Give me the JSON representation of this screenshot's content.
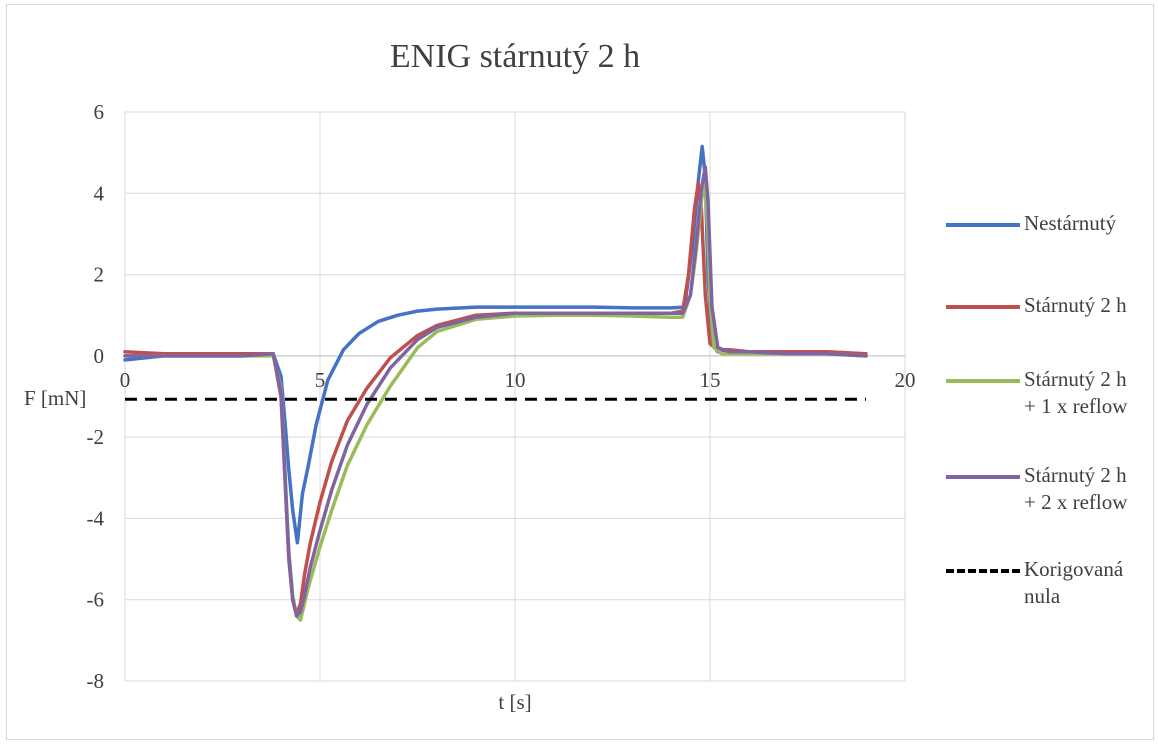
{
  "chart_data": {
    "type": "line",
    "title": "ENIG stárnutý 2 h",
    "xlabel": "t [s]",
    "ylabel": "F [mN]",
    "xlim": [
      0,
      20
    ],
    "ylim": [
      -8,
      6
    ],
    "xticks": [
      0,
      5,
      10,
      15,
      20
    ],
    "yticks": [
      6,
      4,
      2,
      0,
      -2,
      -4,
      -6,
      -8
    ],
    "grid": true,
    "legend_position": "right",
    "series": [
      {
        "name": "Nestárnutý",
        "color": "#4472c4",
        "x": [
          0,
          1,
          2,
          3,
          3.8,
          4.0,
          4.1,
          4.2,
          4.3,
          4.42,
          4.55,
          4.7,
          4.9,
          5.2,
          5.6,
          6.0,
          6.5,
          7.0,
          7.5,
          8.0,
          9.0,
          10.0,
          11.0,
          12.0,
          13.0,
          14.0,
          14.35,
          14.55,
          14.7,
          14.8,
          14.88,
          14.95,
          15.05,
          15.2,
          15.5,
          16,
          17,
          18,
          19
        ],
        "y": [
          -0.1,
          0.0,
          0.0,
          0.0,
          0.05,
          -0.5,
          -1.6,
          -2.8,
          -3.8,
          -4.6,
          -3.4,
          -2.7,
          -1.7,
          -0.6,
          0.15,
          0.55,
          0.85,
          1.0,
          1.1,
          1.15,
          1.2,
          1.2,
          1.2,
          1.2,
          1.18,
          1.18,
          1.2,
          2.7,
          4.3,
          5.15,
          4.4,
          2.0,
          0.3,
          0.1,
          0.05,
          0.05,
          0.05,
          0.05,
          0.0
        ]
      },
      {
        "name": "Stárnutý 2 h",
        "color": "#c0504d",
        "x": [
          0,
          1,
          2,
          3,
          3.8,
          4.0,
          4.1,
          4.2,
          4.3,
          4.4,
          4.5,
          4.6,
          4.75,
          5.0,
          5.3,
          5.7,
          6.2,
          6.8,
          7.5,
          8.0,
          9.0,
          10.0,
          11.0,
          12.0,
          13.0,
          14.0,
          14.3,
          14.45,
          14.6,
          14.7,
          14.78,
          14.88,
          15.0,
          15.2,
          15.5,
          16,
          17,
          18,
          19
        ],
        "y": [
          0.1,
          0.05,
          0.05,
          0.05,
          0.05,
          -1.0,
          -3.0,
          -5.0,
          -6.0,
          -6.35,
          -6.1,
          -5.4,
          -4.6,
          -3.6,
          -2.6,
          -1.6,
          -0.8,
          -0.05,
          0.5,
          0.75,
          1.0,
          1.05,
          1.05,
          1.05,
          1.05,
          1.05,
          1.1,
          2.0,
          3.6,
          4.25,
          3.6,
          1.5,
          0.3,
          0.15,
          0.15,
          0.1,
          0.1,
          0.1,
          0.05
        ]
      },
      {
        "name": "Stárnutý 2 h\n+ 1 x reflow",
        "color": "#9bbb59",
        "x": [
          0,
          1,
          2,
          3,
          3.8,
          4.0,
          4.1,
          4.2,
          4.3,
          4.4,
          4.5,
          4.6,
          4.7,
          4.85,
          5.0,
          5.3,
          5.7,
          6.2,
          6.8,
          7.5,
          8.0,
          9.0,
          10.0,
          11.0,
          12.0,
          13.0,
          14.0,
          14.3,
          14.5,
          14.65,
          14.78,
          14.87,
          14.95,
          15.0,
          15.1,
          15.3,
          16,
          17,
          18,
          19
        ],
        "y": [
          0.0,
          0.0,
          0.0,
          0.0,
          0.0,
          -0.8,
          -2.8,
          -4.8,
          -5.9,
          -6.4,
          -6.5,
          -6.1,
          -5.7,
          -5.2,
          -4.7,
          -3.8,
          -2.7,
          -1.7,
          -0.75,
          0.2,
          0.6,
          0.9,
          0.98,
          1.0,
          1.0,
          0.98,
          0.95,
          0.95,
          1.5,
          2.6,
          3.8,
          4.4,
          3.0,
          1.4,
          0.2,
          0.05,
          0.05,
          0.05,
          0.05,
          0.0
        ]
      },
      {
        "name": "Stárnutý 2 h\n+ 2 x reflow",
        "color": "#8064a2",
        "x": [
          0,
          1,
          2,
          3,
          3.8,
          4.0,
          4.1,
          4.2,
          4.3,
          4.4,
          4.5,
          4.6,
          4.75,
          5.0,
          5.3,
          5.7,
          6.2,
          6.8,
          7.5,
          8.0,
          9.0,
          10.0,
          11.0,
          12.0,
          13.0,
          14.0,
          14.3,
          14.5,
          14.65,
          14.78,
          14.88,
          14.95,
          15.05,
          15.2,
          15.5,
          16,
          17,
          18,
          19
        ],
        "y": [
          0.0,
          0.0,
          0.0,
          0.0,
          0.05,
          -0.9,
          -2.9,
          -4.9,
          -6.0,
          -6.4,
          -6.3,
          -5.9,
          -5.2,
          -4.3,
          -3.3,
          -2.2,
          -1.2,
          -0.3,
          0.4,
          0.7,
          0.95,
          1.05,
          1.05,
          1.05,
          1.05,
          1.05,
          1.05,
          1.5,
          2.8,
          4.1,
          4.65,
          3.8,
          1.2,
          0.2,
          0.1,
          0.1,
          0.05,
          0.05,
          0.0
        ]
      },
      {
        "name": "Korigovaná\nnula",
        "color": "#000000",
        "dashed": true,
        "x": [
          0,
          19
        ],
        "y": [
          -1.07,
          -1.07
        ]
      }
    ]
  }
}
